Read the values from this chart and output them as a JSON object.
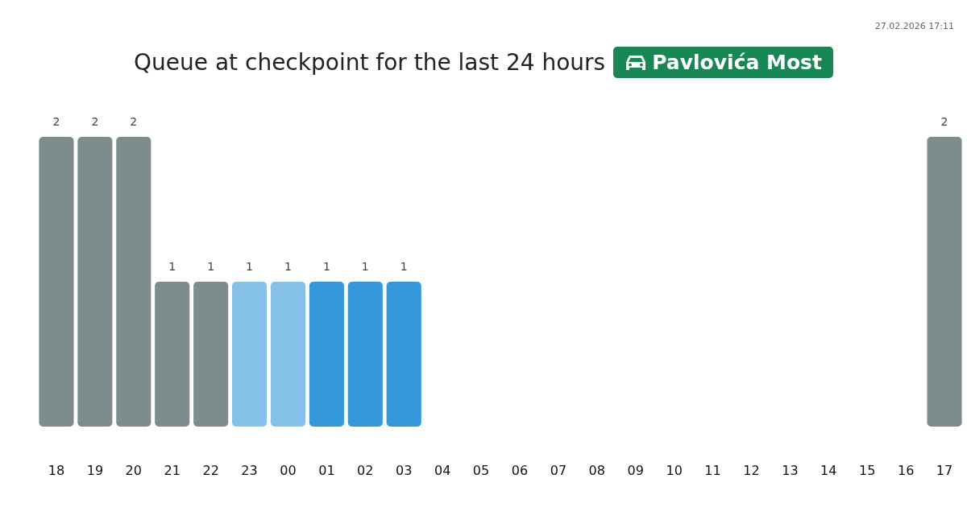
{
  "chart_data": {
    "type": "bar",
    "title": "Queue at checkpoint for the last 24 hours",
    "subtitle": "Pavlovića Most",
    "annotations": [
      "27.02.2026 17:11"
    ],
    "categories": [
      "18",
      "19",
      "20",
      "21",
      "22",
      "23",
      "00",
      "01",
      "02",
      "03",
      "04",
      "05",
      "06",
      "07",
      "08",
      "09",
      "10",
      "11",
      "12",
      "13",
      "14",
      "15",
      "16",
      "17"
    ],
    "values": [
      2,
      2,
      2,
      1,
      1,
      1,
      1,
      1,
      1,
      1,
      null,
      null,
      null,
      null,
      null,
      null,
      null,
      null,
      null,
      null,
      null,
      null,
      null,
      2
    ],
    "colors": [
      "#7f8c8d",
      "#7f8c8d",
      "#7f8c8d",
      "#7f8c8d",
      "#7f8c8d",
      "#85c1e9",
      "#85c1e9",
      "#3498db",
      "#3498db",
      "#3498db",
      null,
      null,
      null,
      null,
      null,
      null,
      null,
      null,
      null,
      null,
      null,
      null,
      null,
      "#7f8c8d"
    ],
    "data_labels": true
  }
}
